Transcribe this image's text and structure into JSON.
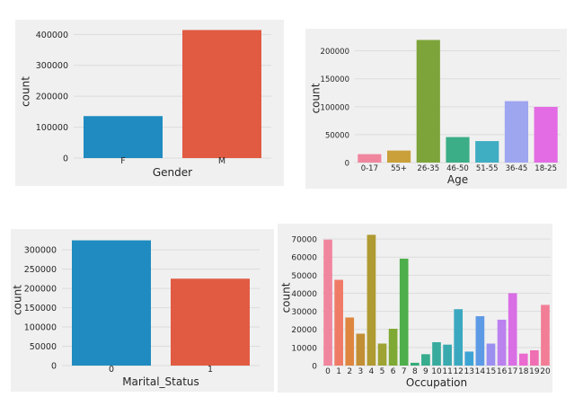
{
  "style": {
    "panel_bg": "#f0f0f0",
    "grid_color": "#dcdcdc",
    "text_color": "#262626"
  },
  "chart_data": [
    {
      "type": "bar",
      "xlabel": "Gender",
      "ylabel": "count",
      "categories": [
        "F",
        "M"
      ],
      "values": [
        135809,
        414259
      ],
      "colors": [
        "#1f8bc0",
        "#e15b43"
      ],
      "ylim": [
        0,
        430000
      ],
      "yticks": [
        0,
        100000,
        200000,
        300000,
        400000
      ],
      "grid": true
    },
    {
      "type": "bar",
      "xlabel": "Age",
      "ylabel": "count",
      "categories": [
        "0-17",
        "55+",
        "26-35",
        "46-50",
        "51-55",
        "36-45",
        "18-25"
      ],
      "values": [
        15102,
        21504,
        219587,
        45701,
        38501,
        110013,
        99660
      ],
      "colors": [
        "#f0869e",
        "#c9a03a",
        "#7da43a",
        "#3bae87",
        "#3fadc2",
        "#9ea6f0",
        "#e36ce4"
      ],
      "ylim": [
        0,
        230000
      ],
      "yticks": [
        0,
        50000,
        100000,
        150000,
        200000
      ],
      "grid": true
    },
    {
      "type": "bar",
      "xlabel": "Marital_Status",
      "ylabel": "count",
      "categories": [
        "0",
        "1"
      ],
      "values": [
        324731,
        225337
      ],
      "colors": [
        "#1f8bc0",
        "#e15b43"
      ],
      "ylim": [
        0,
        340000
      ],
      "yticks": [
        0,
        50000,
        100000,
        150000,
        200000,
        250000,
        300000
      ],
      "grid": true
    },
    {
      "type": "bar",
      "xlabel": "Occupation",
      "ylabel": "count",
      "categories": [
        "0",
        "1",
        "2",
        "3",
        "4",
        "5",
        "6",
        "7",
        "8",
        "9",
        "10",
        "11",
        "12",
        "13",
        "14",
        "15",
        "16",
        "17",
        "18",
        "19",
        "20"
      ],
      "values": [
        69638,
        47426,
        26588,
        17650,
        72308,
        12177,
        20355,
        59133,
        1546,
        6291,
        12930,
        11586,
        31179,
        7728,
        27309,
        12165,
        25371,
        40043,
        6622,
        8461,
        33562
      ],
      "colors": [
        "#f0869e",
        "#ef7b67",
        "#de8640",
        "#c38f34",
        "#b09a32",
        "#9ea333",
        "#7ea934",
        "#4dae4a",
        "#35ab79",
        "#37ad8e",
        "#38ab9e",
        "#3aaaaf",
        "#3ca8c0",
        "#3da3d4",
        "#5d9ae6",
        "#9b8ff0",
        "#bb81ef",
        "#d96ee5",
        "#eb6ad0",
        "#f06eb2",
        "#f17e96"
      ],
      "ylim": [
        0,
        75000
      ],
      "yticks": [
        0,
        10000,
        20000,
        30000,
        40000,
        50000,
        60000,
        70000
      ],
      "grid": true
    }
  ]
}
